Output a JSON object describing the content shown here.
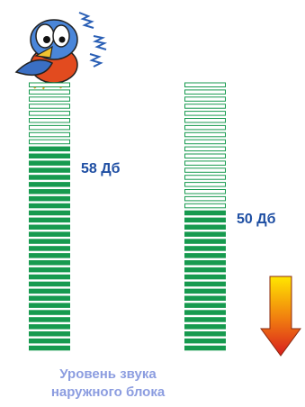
{
  "meters": [
    {
      "label": "58 Дб"
    },
    {
      "label": "50 Дб"
    }
  ],
  "caption": [
    "Уровень звука",
    "наружного блока"
  ]
}
